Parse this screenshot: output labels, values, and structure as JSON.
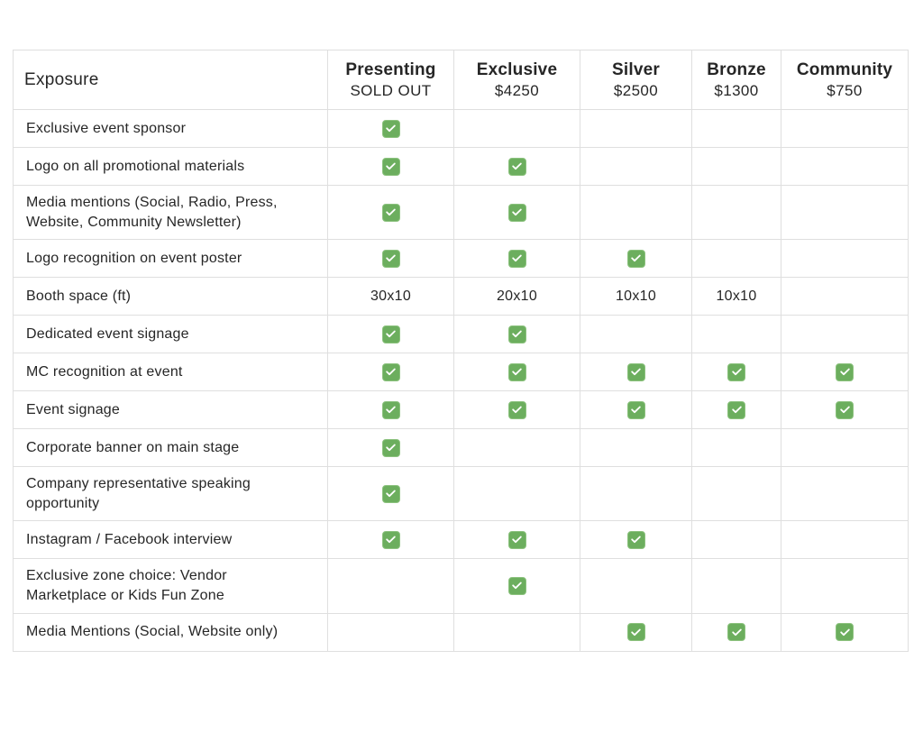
{
  "colors": {
    "check_green": "#6cae5e",
    "border_gray": "#dfdfdf",
    "text": "#262626",
    "background": "#ffffff"
  },
  "table": {
    "exposure_header": "Exposure",
    "tiers": [
      {
        "name": "Presenting",
        "price": "SOLD OUT"
      },
      {
        "name": "Exclusive",
        "price": "$4250"
      },
      {
        "name": "Silver",
        "price": "$2500"
      },
      {
        "name": "Bronze",
        "price": "$1300"
      },
      {
        "name": "Community",
        "price": "$750"
      }
    ],
    "rows": [
      {
        "label": "Exclusive event sponsor",
        "cells": [
          "check",
          "",
          "",
          "",
          ""
        ]
      },
      {
        "label": "Logo on all promotional materials",
        "cells": [
          "check",
          "check",
          "",
          "",
          ""
        ]
      },
      {
        "label": "Media mentions (Social, Radio, Press,\nWebsite, Community Newsletter)",
        "cells": [
          "check",
          "check",
          "",
          "",
          ""
        ]
      },
      {
        "label": "Logo recognition on event poster",
        "cells": [
          "check",
          "check",
          "check",
          "",
          ""
        ]
      },
      {
        "label": "Booth space (ft)",
        "cells": [
          "30x10",
          "20x10",
          "10x10",
          "10x10",
          ""
        ]
      },
      {
        "label": "Dedicated event signage",
        "cells": [
          "check",
          "check",
          "",
          "",
          ""
        ]
      },
      {
        "label": "MC recognition at event",
        "cells": [
          "check",
          "check",
          "check",
          "check",
          "check"
        ]
      },
      {
        "label": "Event signage",
        "cells": [
          "check",
          "check",
          "check",
          "check",
          "check"
        ]
      },
      {
        "label": "Corporate banner on main stage",
        "cells": [
          "check",
          "",
          "",
          "",
          ""
        ]
      },
      {
        "label": "Company representative speaking\nopportunity",
        "cells": [
          "check",
          "",
          "",
          "",
          ""
        ]
      },
      {
        "label": "Instagram / Facebook interview",
        "cells": [
          "check",
          "check",
          "check",
          "",
          ""
        ]
      },
      {
        "label": "Exclusive zone choice: Vendor\nMarketplace or Kids Fun Zone",
        "cells": [
          "",
          "check",
          "",
          "",
          ""
        ]
      },
      {
        "label": "Media Mentions (Social, Website only)",
        "cells": [
          "",
          "",
          "check",
          "check",
          "check"
        ]
      }
    ]
  },
  "chart_data": {
    "type": "table",
    "title": "Sponsorship exposure comparison",
    "columns": [
      "Exposure",
      "Presenting SOLD OUT",
      "Exclusive $4250",
      "Silver $2500",
      "Bronze $1300",
      "Community $750"
    ],
    "rows": [
      [
        "Exclusive event sponsor",
        true,
        false,
        false,
        false,
        false
      ],
      [
        "Logo on all promotional materials",
        true,
        true,
        false,
        false,
        false
      ],
      [
        "Media mentions (Social, Radio, Press, Website, Community Newsletter)",
        true,
        true,
        false,
        false,
        false
      ],
      [
        "Logo recognition on event poster",
        true,
        true,
        true,
        false,
        false
      ],
      [
        "Booth space (ft)",
        "30x10",
        "20x10",
        "10x10",
        "10x10",
        ""
      ],
      [
        "Dedicated event signage",
        true,
        true,
        false,
        false,
        false
      ],
      [
        "MC recognition at event",
        true,
        true,
        true,
        true,
        true
      ],
      [
        "Event signage",
        true,
        true,
        true,
        true,
        true
      ],
      [
        "Corporate banner on main stage",
        true,
        false,
        false,
        false,
        false
      ],
      [
        "Company representative speaking opportunity",
        true,
        false,
        false,
        false,
        false
      ],
      [
        "Instagram / Facebook interview",
        true,
        true,
        true,
        false,
        false
      ],
      [
        "Exclusive zone choice: Vendor Marketplace or Kids Fun Zone",
        false,
        true,
        false,
        false,
        false
      ],
      [
        "Media Mentions (Social, Website only)",
        false,
        false,
        true,
        true,
        true
      ]
    ]
  }
}
